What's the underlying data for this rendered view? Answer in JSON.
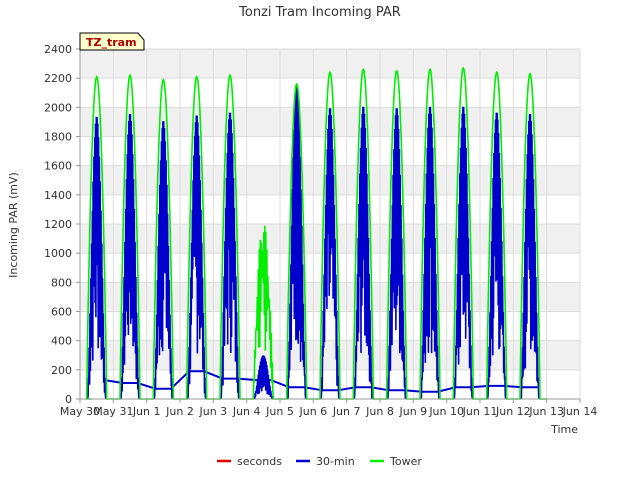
{
  "chart_data": {
    "type": "line",
    "title": "Tonzi Tram Incoming PAR",
    "xlabel": "Time",
    "ylabel": "Incoming PAR (mV)",
    "badge": "TZ_tram",
    "xlim": [
      0,
      15
    ],
    "ylim": [
      0,
      2400
    ],
    "x_ticks": [
      "May 30",
      "May 31",
      "Jun 1",
      "Jun 2",
      "Jun 3",
      "Jun 4",
      "Jun 5",
      "Jun 6",
      "Jun 7",
      "Jun 8",
      "Jun 9",
      "Jun 10",
      "Jun 11",
      "Jun 12",
      "Jun 13",
      "Jun 14"
    ],
    "y_ticks": [
      0,
      200,
      400,
      600,
      800,
      1000,
      1200,
      1400,
      1600,
      1800,
      2000,
      2200,
      2400
    ],
    "grid": true,
    "legend_position": "bottom",
    "series": [
      {
        "name": "seconds",
        "color": "#dd0000",
        "peaks": []
      },
      {
        "name": "30-min",
        "color": "#0000cc",
        "days": [
          0.5,
          1.5,
          2.5,
          3.5,
          4.5,
          5.5,
          6.5,
          7.5,
          8.5,
          9.5,
          10.5,
          11.5,
          12.5,
          13.5
        ],
        "peaks": [
          1940,
          1960,
          1910,
          1950,
          1970,
          300,
          2160,
          2000,
          2010,
          2000,
          2010,
          2010,
          1970,
          1960
        ],
        "night_values": [
          130,
          110,
          70,
          190,
          140,
          130,
          80,
          60,
          80,
          60,
          50,
          80,
          90,
          80
        ]
      },
      {
        "name": "Tower",
        "color": "#00ee00",
        "days": [
          0.5,
          1.5,
          2.5,
          3.5,
          4.5,
          5.5,
          6.5,
          7.5,
          8.5,
          9.5,
          10.5,
          11.5,
          12.5,
          13.5
        ],
        "peaks": [
          2210,
          2220,
          2190,
          2210,
          2220,
          1230,
          2160,
          2240,
          2260,
          2250,
          2260,
          2270,
          2240,
          2230
        ]
      }
    ]
  }
}
